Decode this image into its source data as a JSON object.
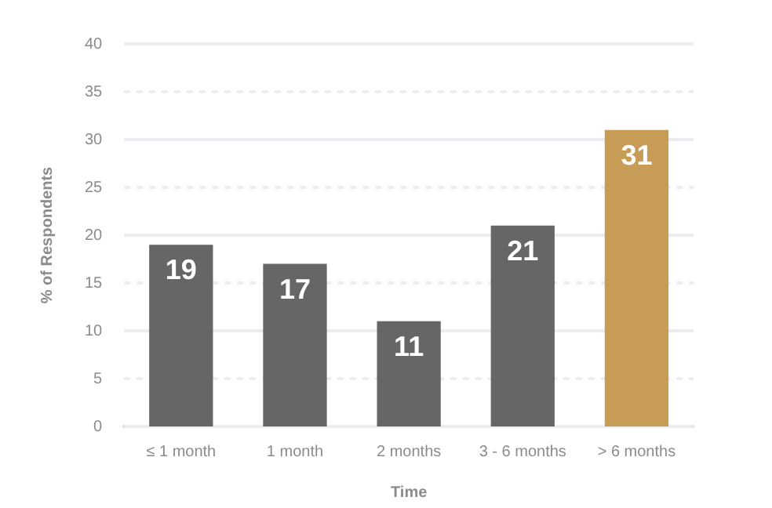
{
  "chart_data": {
    "type": "bar",
    "xlabel": "Time",
    "ylabel": "% of Respondents",
    "categories": [
      "≤ 1 month",
      "1 month",
      "2 months",
      "3 - 6 months",
      "> 6 months"
    ],
    "values": [
      19,
      17,
      11,
      21,
      31
    ],
    "colors": [
      "#666666",
      "#666666",
      "#666666",
      "#666666",
      "#c69c56"
    ],
    "ylim": [
      0,
      40
    ],
    "yticks": [
      0,
      5,
      10,
      15,
      20,
      25,
      30,
      35,
      40
    ],
    "grid": "y",
    "data_labels": true
  }
}
